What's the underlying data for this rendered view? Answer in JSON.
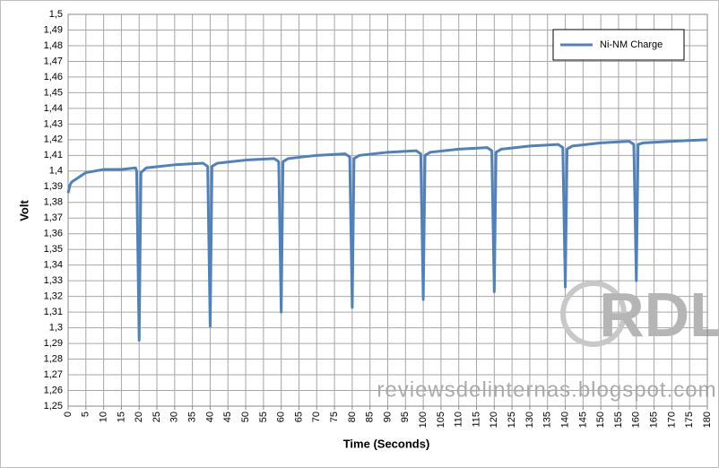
{
  "chart_data": {
    "type": "line",
    "x_label": "Time (Seconds)",
    "y_label": "Volt",
    "x": [
      0,
      0.5,
      1,
      3,
      5,
      10,
      15,
      19,
      19.3,
      20,
      20.5,
      22,
      30,
      38,
      39.3,
      40,
      40.5,
      42,
      50,
      58,
      59.3,
      60,
      60.5,
      62,
      70,
      78,
      79.3,
      80,
      80.5,
      82,
      90,
      98,
      99.3,
      100,
      100.5,
      102,
      110,
      118,
      119.3,
      120,
      120.5,
      122,
      130,
      138,
      139.3,
      140,
      140.5,
      142,
      150,
      158,
      159.3,
      160,
      160.5,
      162,
      170,
      180
    ],
    "series": [
      {
        "name": "Ni-NM Charge",
        "color": "#4f81bd",
        "values": [
          1.386,
          1.391,
          1.393,
          1.396,
          1.399,
          1.401,
          1.401,
          1.402,
          1.4,
          1.292,
          1.399,
          1.402,
          1.404,
          1.405,
          1.403,
          1.301,
          1.403,
          1.405,
          1.407,
          1.408,
          1.406,
          1.31,
          1.406,
          1.408,
          1.41,
          1.411,
          1.409,
          1.313,
          1.408,
          1.41,
          1.412,
          1.413,
          1.411,
          1.318,
          1.41,
          1.412,
          1.414,
          1.415,
          1.413,
          1.323,
          1.412,
          1.414,
          1.416,
          1.417,
          1.415,
          1.326,
          1.414,
          1.416,
          1.418,
          1.419,
          1.417,
          1.33,
          1.417,
          1.418,
          1.419,
          1.42
        ]
      }
    ],
    "xlim": [
      0,
      180
    ],
    "xticks": [
      0,
      5,
      10,
      15,
      20,
      25,
      30,
      35,
      40,
      45,
      50,
      55,
      60,
      65,
      70,
      75,
      80,
      85,
      90,
      95,
      100,
      105,
      110,
      115,
      120,
      125,
      130,
      135,
      140,
      145,
      150,
      155,
      160,
      165,
      170,
      175,
      180
    ],
    "ylim": [
      1.25,
      1.5
    ],
    "yticks": [
      {
        "value": 1.25,
        "label": "1,25"
      },
      {
        "value": 1.26,
        "label": "1,26"
      },
      {
        "value": 1.27,
        "label": "1,27"
      },
      {
        "value": 1.28,
        "label": "1,28"
      },
      {
        "value": 1.29,
        "label": "1,29"
      },
      {
        "value": 1.3,
        "label": "1,3"
      },
      {
        "value": 1.31,
        "label": "1,31"
      },
      {
        "value": 1.32,
        "label": "1,32"
      },
      {
        "value": 1.33,
        "label": "1,33"
      },
      {
        "value": 1.34,
        "label": "1,34"
      },
      {
        "value": 1.35,
        "label": "1,35"
      },
      {
        "value": 1.36,
        "label": "1,36"
      },
      {
        "value": 1.37,
        "label": "1,37"
      },
      {
        "value": 1.38,
        "label": "1,38"
      },
      {
        "value": 1.39,
        "label": "1,39"
      },
      {
        "value": 1.4,
        "label": "1,4"
      },
      {
        "value": 1.41,
        "label": "1,41"
      },
      {
        "value": 1.42,
        "label": "1,42"
      },
      {
        "value": 1.43,
        "label": "1,43"
      },
      {
        "value": 1.44,
        "label": "1,44"
      },
      {
        "value": 1.45,
        "label": "1,45"
      },
      {
        "value": 1.46,
        "label": "1,46"
      },
      {
        "value": 1.47,
        "label": "1,47"
      },
      {
        "value": 1.48,
        "label": "1,48"
      },
      {
        "value": 1.49,
        "label": "1,49"
      },
      {
        "value": 1.5,
        "label": "1,5"
      }
    ],
    "grid": true,
    "legend": "upper right",
    "watermark": "reviewsdelinternas.blogspot.com",
    "logo": "RDL"
  }
}
